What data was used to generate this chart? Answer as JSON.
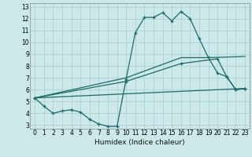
{
  "xlabel": "Humidex (Indice chaleur)",
  "background_color": "#cce8e8",
  "grid_color": "#aad4d4",
  "line_color": "#1a6b6b",
  "xlim": [
    -0.5,
    23.5
  ],
  "ylim": [
    2.7,
    13.3
  ],
  "xtick_labels": [
    "0",
    "1",
    "2",
    "3",
    "4",
    "5",
    "6",
    "7",
    "8",
    "9",
    "10",
    "11",
    "12",
    "13",
    "14",
    "15",
    "16",
    "17",
    "18",
    "19",
    "20",
    "21",
    "22",
    "23"
  ],
  "ytick_labels": [
    "3",
    "4",
    "5",
    "6",
    "7",
    "8",
    "9",
    "10",
    "11",
    "12",
    "13"
  ],
  "series1_x": [
    0,
    1,
    2,
    3,
    4,
    5,
    6,
    7,
    8,
    9,
    10,
    11,
    12,
    13,
    14,
    15,
    16,
    17,
    18,
    19,
    20,
    21,
    22,
    23
  ],
  "series1_y": [
    5.3,
    4.6,
    4.0,
    4.2,
    4.3,
    4.1,
    3.5,
    3.1,
    2.9,
    2.9,
    6.9,
    10.8,
    12.1,
    12.1,
    12.5,
    11.8,
    12.6,
    12.0,
    10.3,
    8.7,
    7.4,
    7.1,
    6.0,
    6.1
  ],
  "series2_x": [
    0,
    23
  ],
  "series2_y": [
    5.3,
    6.1
  ],
  "series3_x": [
    0,
    10,
    16,
    20,
    21,
    22,
    23
  ],
  "series3_y": [
    5.3,
    6.7,
    8.2,
    8.6,
    7.1,
    6.0,
    6.1
  ],
  "series4_x": [
    0,
    10,
    16,
    19,
    23
  ],
  "series4_y": [
    5.3,
    7.0,
    8.7,
    8.7,
    8.8
  ]
}
